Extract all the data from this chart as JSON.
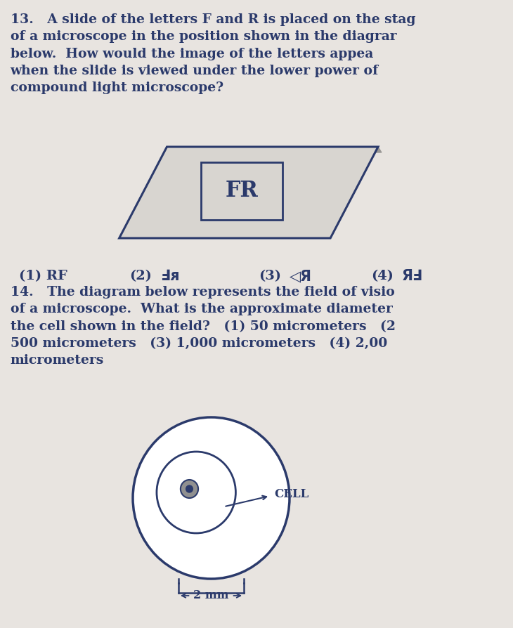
{
  "bg_color": "#e8e4e0",
  "text_color": "#2b3a6b",
  "fr_text": "FR",
  "cell_label": "CELL",
  "scale_label": "2 mm"
}
